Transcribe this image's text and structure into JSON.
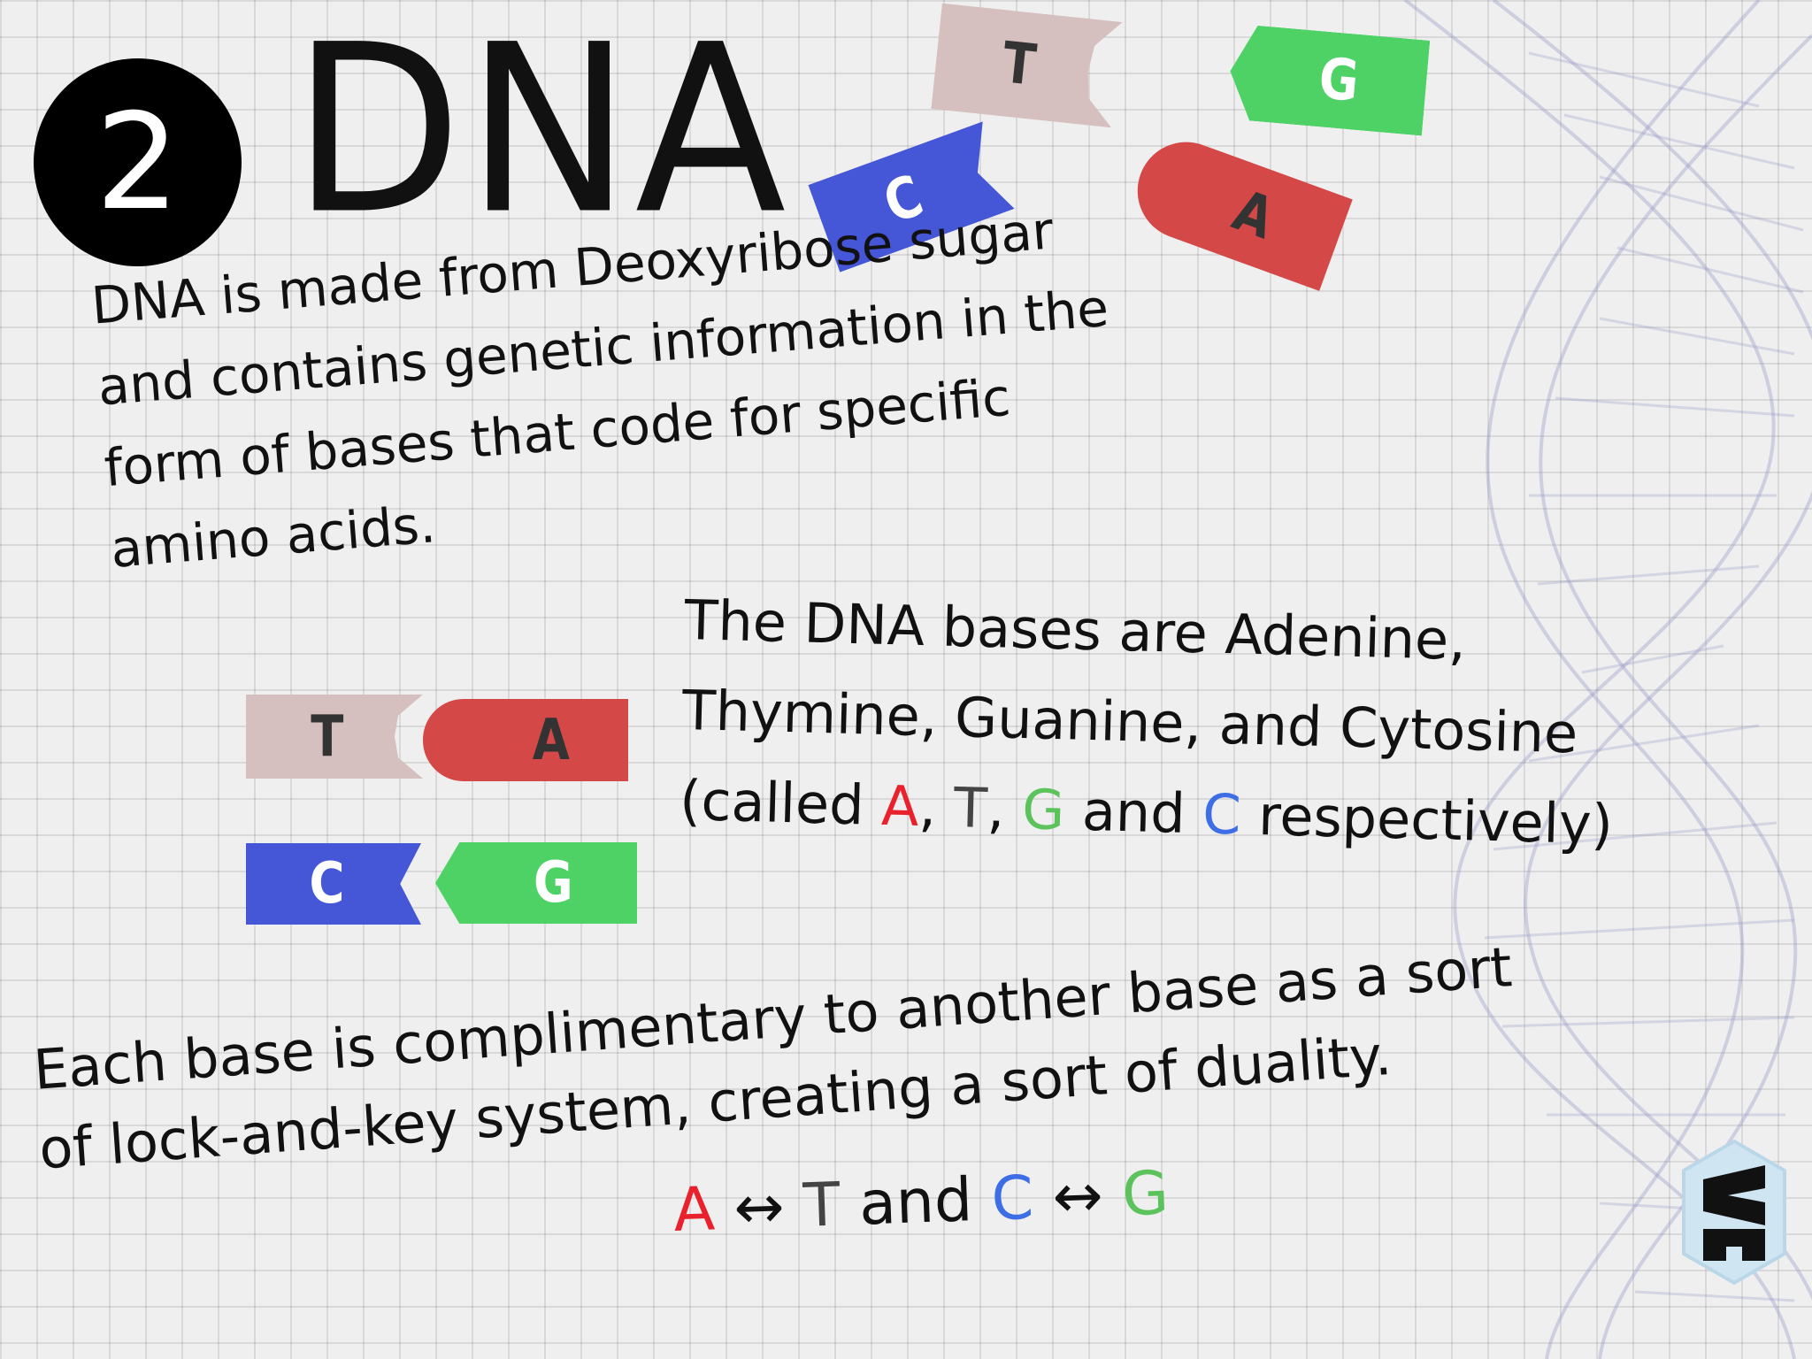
{
  "header": {
    "step_number": "2",
    "title": "DNA"
  },
  "intro": {
    "lines": [
      "DNA is made from Deoxyribose sugar",
      "and contains genetic information in the",
      "form of bases that code for specific",
      "amino acids."
    ]
  },
  "bases_text": {
    "line1": "The DNA bases are Adenine,",
    "line2": "Thymine, Guanine, and Cytosine",
    "line3_prefix": "(called ",
    "letter_a": "A",
    "sep1": ", ",
    "letter_t": "T",
    "sep2": ", ",
    "letter_g": "G",
    "and_word": " and ",
    "letter_c": "C",
    "line3_suffix": " respectively)"
  },
  "duality": {
    "line1": "Each base is complimentary to another base as a sort",
    "line2": "of lock-and-key system, creating a sort of duality."
  },
  "pairing": {
    "a": "A",
    "arrow1": " ↔ ",
    "t": "T",
    "and_word": " and ",
    "c": "C",
    "arrow2": " ↔ ",
    "g": "G"
  },
  "tags": {
    "t": "T",
    "a": "A",
    "c": "C",
    "g": "G"
  },
  "colors": {
    "adenine": "#d54848",
    "thymine": "#d6bfbf",
    "cytosine": "#4556d6",
    "guanine": "#4ed165"
  },
  "icons": {
    "helix": "dna-helix-decoration",
    "logo": "brand-logo"
  }
}
